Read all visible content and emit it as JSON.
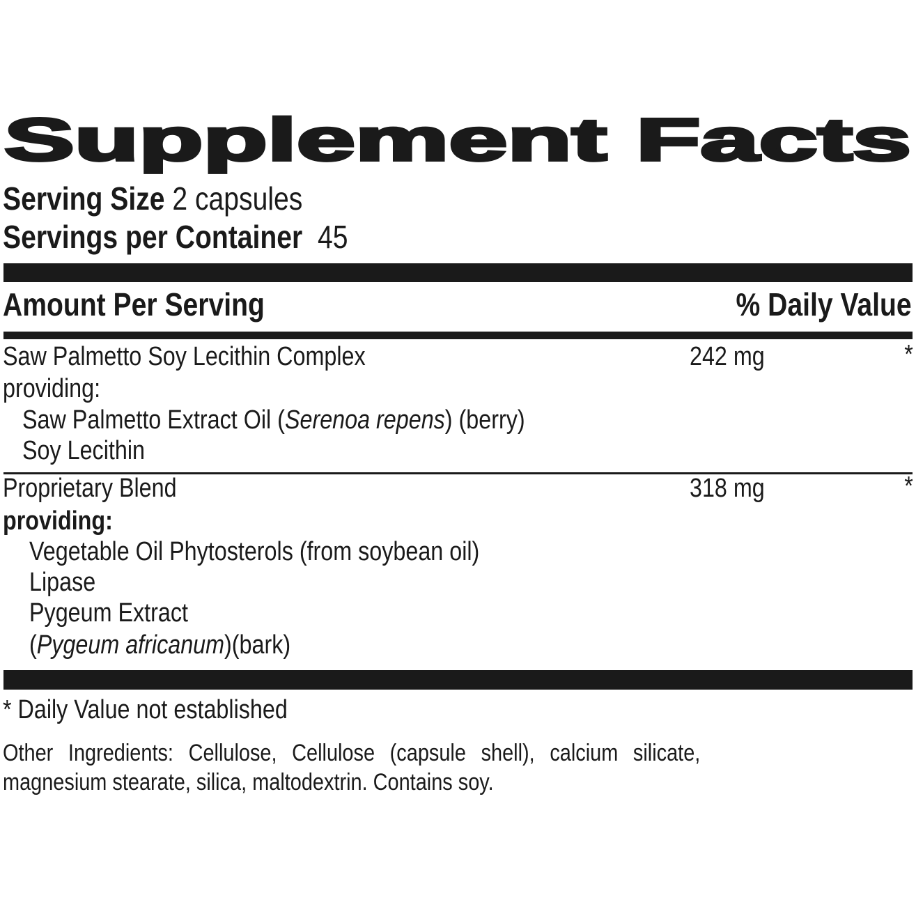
{
  "title": "Supplement Facts",
  "serving": {
    "size_label": "Serving Size",
    "size_value": "2 capsules",
    "per_container_label": "Servings per Container",
    "per_container_value": "45"
  },
  "header": {
    "amount_label": "Amount Per Serving",
    "dv_label": "% Daily Value"
  },
  "rows": [
    {
      "name": "Saw Palmetto Soy Lecithin Complex",
      "amount": "242 mg",
      "dv": "*",
      "providing": "providing:",
      "sub": [
        {
          "pre": "Saw Palmetto Extract Oil (",
          "italic": "Serenoa repens",
          "post": ") (berry)"
        },
        {
          "pre": "Soy Lecithin"
        }
      ]
    },
    {
      "name": "Proprietary Blend",
      "amount": "318 mg",
      "dv": "*",
      "providing": "providing:",
      "sub": [
        {
          "pre": "Vegetable Oil Phytosterols (from soybean oil)"
        },
        {
          "pre": "Lipase"
        },
        {
          "pre": "Pygeum Extract"
        },
        {
          "pre": "(",
          "italic": "Pygeum africanum",
          "post": ")(bark)"
        }
      ]
    }
  ],
  "footnote": "* Daily Value not established",
  "other_ingredients": {
    "line1": "Other Ingredients: Cellulose, Cellulose (capsule shell), calcium silicate,",
    "line2": "magnesium stearate, silica, maltodextrin. Contains soy."
  }
}
